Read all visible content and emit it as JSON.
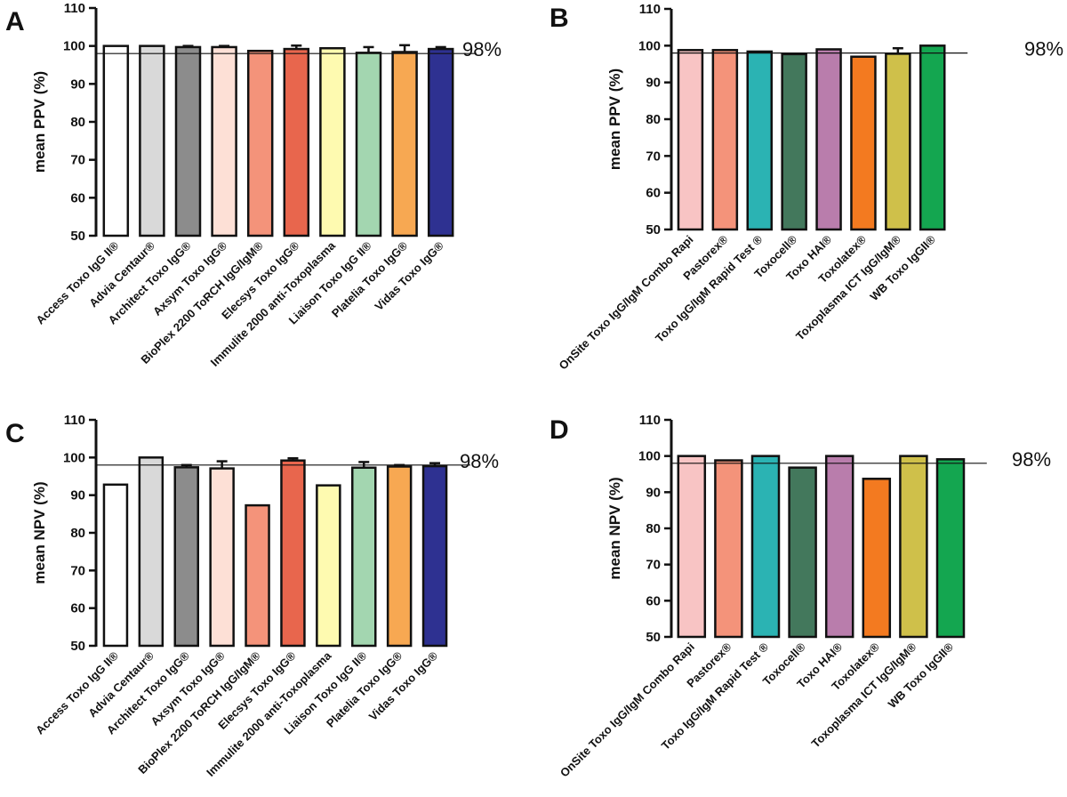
{
  "colors": {
    "white": "#ffffff",
    "light_gray": "#d9d9d9",
    "gray": "#8c8c8c",
    "peach": "#fde0d6",
    "salmon": "#f4937a",
    "red_orange": "#e8664d",
    "light_yellow": "#fefab0",
    "light_green": "#a3d6b0",
    "orange": "#f7a852",
    "navy": "#2e3191",
    "pink": "#f8c4c4",
    "salmon_b": "#f4937a",
    "teal": "#2bb3b3",
    "dark_green": "#43785c",
    "mauve": "#b97dac",
    "bright_orange": "#f37a20",
    "olive": "#cfc04a",
    "green": "#14a650"
  },
  "chart_data": [
    {
      "id": "A",
      "panel_label": "A",
      "type": "bar",
      "ylabel": "mean PPV (%)",
      "ylim": [
        50,
        110
      ],
      "yticks": [
        50,
        60,
        70,
        80,
        90,
        100,
        110
      ],
      "reference_line": {
        "value": 98,
        "label": "98%"
      },
      "categories": [
        "Access Toxo IgG II®",
        "Advia Centaur®",
        "Architect Toxo IgG®",
        "Axsym Toxo IgG®",
        "BioPlex 2200 ToRCH IgG/IgM®",
        "Elecsys Toxo IgG®",
        "Immulite 2000 anti-Toxoplasma",
        "Liaison Toxo IgG II®",
        "Platelia Toxo IgG®",
        "Vidas Toxo IgG®"
      ],
      "values": [
        100,
        100,
        99.7,
        99.7,
        98.7,
        99.2,
        99.4,
        98.2,
        98.4,
        99.2
      ],
      "errors": [
        0,
        0,
        0.3,
        0.3,
        0,
        0.9,
        0,
        1.5,
        1.8,
        0.5
      ],
      "colors": [
        "#ffffff",
        "#d9d9d9",
        "#8c8c8c",
        "#fde0d6",
        "#f4937a",
        "#e8664d",
        "#fefab0",
        "#a3d6b0",
        "#f7a852",
        "#2e3191"
      ]
    },
    {
      "id": "B",
      "panel_label": "B",
      "type": "bar",
      "ylabel": "mean PPV (%)",
      "ylim": [
        50,
        110
      ],
      "yticks": [
        50,
        60,
        70,
        80,
        90,
        100,
        110
      ],
      "reference_line": {
        "value": 98,
        "label": "98%"
      },
      "categories": [
        "OnSite Toxo IgG/IgM Combo Rapi",
        "Pastorex®",
        "Toxo IgG/IgM Rapid Test ®",
        "Toxocell®",
        "Toxo HAI®",
        "Toxolatex®",
        "Toxoplasma ICT IgG/IgM®",
        "WB Toxo IgGII®"
      ],
      "values": [
        98.8,
        98.8,
        98.4,
        97.7,
        99,
        97,
        97.8,
        100
      ],
      "errors": [
        0,
        0,
        0,
        0,
        0,
        0,
        1.5,
        0
      ],
      "colors": [
        "#f8c4c4",
        "#f4937a",
        "#2bb3b3",
        "#43785c",
        "#b97dac",
        "#f37a20",
        "#cfc04a",
        "#14a650"
      ]
    },
    {
      "id": "C",
      "panel_label": "C",
      "type": "bar",
      "ylabel": "mean NPV (%)",
      "ylim": [
        50,
        110
      ],
      "yticks": [
        50,
        60,
        70,
        80,
        90,
        100,
        110
      ],
      "reference_line": {
        "value": 98,
        "label": "98%"
      },
      "categories": [
        "Access Toxo IgG II®",
        "Advia Centaur®",
        "Architect Toxo IgG®",
        "Axsym Toxo IgG®",
        "BioPlex 2200 ToRCH IgG/IgM®",
        "Elecsys Toxo IgG®",
        "Immulite 2000 anti-Toxoplasma",
        "Liaison Toxo IgG II®",
        "Platelia Toxo IgG®",
        "Vidas Toxo IgG®"
      ],
      "values": [
        92.8,
        100,
        97.4,
        97.1,
        87.3,
        99.2,
        92.6,
        97.3,
        97.6,
        97.7
      ],
      "errors": [
        0,
        0,
        0.6,
        1.9,
        0,
        0.6,
        0,
        1.5,
        0.4,
        0.8
      ],
      "colors": [
        "#ffffff",
        "#d9d9d9",
        "#8c8c8c",
        "#fde0d6",
        "#f4937a",
        "#e8664d",
        "#fefab0",
        "#a3d6b0",
        "#f7a852",
        "#2e3191"
      ]
    },
    {
      "id": "D",
      "panel_label": "D",
      "type": "bar",
      "ylabel": "mean NPV (%)",
      "ylim": [
        50,
        110
      ],
      "yticks": [
        50,
        60,
        70,
        80,
        90,
        100,
        110
      ],
      "reference_line": {
        "value": 98,
        "label": "98%"
      },
      "categories": [
        "OnSite Toxo IgG/IgM Combo Rapi",
        "Pastorex®",
        "Toxo IgG/IgM Rapid Test ®",
        "Toxocell®",
        "Toxo HAI®",
        "Toxolatex®",
        "Toxoplasma ICT IgG/IgM®",
        "WB Toxo IgGII®"
      ],
      "values": [
        100,
        98.8,
        100,
        96.8,
        100,
        93.7,
        100,
        99.1
      ],
      "errors": [
        0,
        0,
        0,
        0,
        0,
        0,
        0,
        0
      ],
      "colors": [
        "#f8c4c4",
        "#f4937a",
        "#2bb3b3",
        "#43785c",
        "#b97dac",
        "#f37a20",
        "#cfc04a",
        "#14a650"
      ]
    }
  ]
}
